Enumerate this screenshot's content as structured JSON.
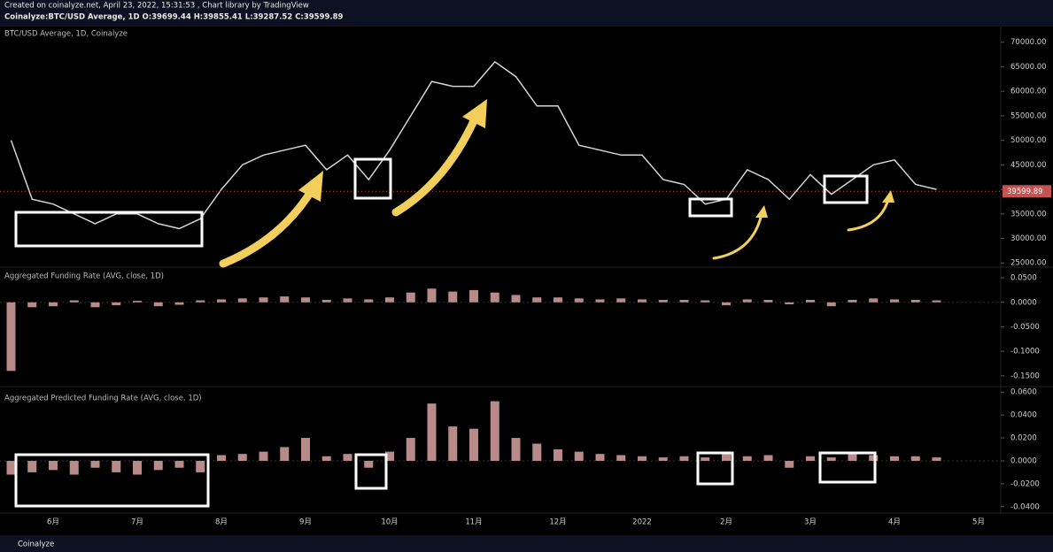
{
  "header": {
    "created": "Created on coinalyze.net, April 23, 2022, 15:31:53 , Chart library by TradingView",
    "symbol": "Coinalyze:BTC/USD Average, 1D O:39699.44 H:39855.41 L:39287.52 C:39599.89"
  },
  "footer": "Coinalyze",
  "chart_data": [
    {
      "type": "line",
      "title": "BTC/USD Average, 1D, Coinalyze",
      "color": "#d9d2d2",
      "categories": [
        null,
        null,
        "6月",
        null,
        null,
        null,
        "7月",
        null,
        null,
        null,
        "8月",
        null,
        null,
        null,
        "9月",
        null,
        null,
        null,
        "10月",
        null,
        null,
        null,
        "11月",
        null,
        null,
        null,
        "12月",
        null,
        null,
        null,
        "2022",
        null,
        null,
        null,
        "2月",
        null,
        null,
        null,
        "3月",
        null,
        null,
        null,
        "4月",
        null,
        null,
        null,
        "5月"
      ],
      "values": [
        50000,
        38000,
        37000,
        35000,
        33000,
        35000,
        35000,
        33000,
        32000,
        34000,
        40000,
        45000,
        47000,
        48000,
        49000,
        44000,
        47000,
        42000,
        48000,
        55000,
        62000,
        61000,
        61000,
        66000,
        63000,
        57000,
        57000,
        49000,
        48000,
        47000,
        47000,
        42000,
        41000,
        37000,
        38000,
        44000,
        42000,
        38000,
        43000,
        39000,
        42000,
        45000,
        46000,
        41000,
        40000,
        null,
        null
      ],
      "last_price": 39599.89,
      "ylim": [
        24500,
        73200
      ],
      "yticks": [
        {
          "value": 25000,
          "label": "25000.00"
        },
        {
          "value": 30000,
          "label": "30000.00"
        },
        {
          "value": 35000,
          "label": "35000.00"
        },
        {
          "value": 40000,
          "label": "40000.00"
        },
        {
          "value": 45000,
          "label": "45000.00"
        },
        {
          "value": 50000,
          "label": "50000.00"
        },
        {
          "value": 55000,
          "label": "55000.00"
        },
        {
          "value": 60000,
          "label": "60000.00"
        },
        {
          "value": 65000,
          "label": "65000.00"
        },
        {
          "value": 70000,
          "label": "70000.00"
        }
      ]
    },
    {
      "type": "bar",
      "title": "Aggregated Funding Rate (AVG, close, 1D)",
      "color": "#b98a8a",
      "values": [
        -0.14,
        -0.01,
        -0.008,
        0.004,
        -0.01,
        -0.006,
        0.003,
        -0.008,
        -0.005,
        0.004,
        0.006,
        0.008,
        0.01,
        0.012,
        0.01,
        0.005,
        0.008,
        0.006,
        0.01,
        0.02,
        0.028,
        0.022,
        0.025,
        0.02,
        0.015,
        0.01,
        0.01,
        0.008,
        0.006,
        0.008,
        0.006,
        0.005,
        0.005,
        0.004,
        -0.006,
        0.006,
        0.005,
        -0.004,
        0.005,
        -0.008,
        0.005,
        0.008,
        0.006,
        0.005,
        0.004,
        null,
        null
      ],
      "ylim": [
        -0.172,
        0.07
      ],
      "yticks": [
        {
          "value": 0.05,
          "label": "0.0500"
        },
        {
          "value": 0,
          "label": "0.0000"
        },
        {
          "value": -0.05,
          "label": "-0.0500"
        },
        {
          "value": -0.1,
          "label": "-0.1000"
        },
        {
          "value": -0.15,
          "label": "-0.1500"
        }
      ]
    },
    {
      "type": "bar",
      "title": "Aggregated Predicted Funding Rate (AVG, close, 1D)",
      "color": "#b98a8a",
      "values": [
        -0.012,
        -0.01,
        -0.008,
        -0.012,
        -0.006,
        -0.01,
        -0.012,
        -0.008,
        -0.006,
        -0.01,
        0.005,
        0.006,
        0.008,
        0.012,
        0.02,
        0.004,
        0.006,
        -0.006,
        0.008,
        0.02,
        0.05,
        0.03,
        0.028,
        0.052,
        0.02,
        0.015,
        0.01,
        0.008,
        0.006,
        0.005,
        0.004,
        0.003,
        0.004,
        0.003,
        0.006,
        0.004,
        0.005,
        -0.006,
        0.004,
        0.003,
        0.006,
        0.005,
        0.004,
        0.004,
        0.003,
        null,
        null
      ],
      "ylim": [
        -0.044,
        0.064
      ],
      "yticks": [
        {
          "value": 0.06,
          "label": "0.0600"
        },
        {
          "value": 0.04,
          "label": "0.0400"
        },
        {
          "value": 0.02,
          "label": "0.0200"
        },
        {
          "value": 0,
          "label": "0.0000"
        },
        {
          "value": -0.02,
          "label": "-0.0200"
        },
        {
          "value": -0.04,
          "label": "-0.0400"
        }
      ]
    }
  ]
}
